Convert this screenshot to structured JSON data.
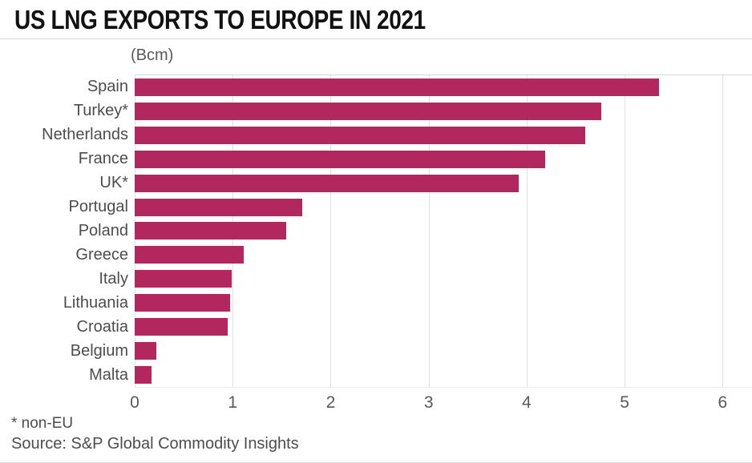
{
  "title": "US LNG EXPORTS TO EUROPE IN 2021",
  "unit_label": "(Bcm)",
  "footnote": "* non-EU",
  "source": "Source: S&P Global Commodity Insights",
  "colors": {
    "bar": "#b3275f",
    "gridline": "#e0e0e0",
    "title_rule": "#d9d9d9",
    "title_text": "#111111",
    "label_text": "#4d4d4d",
    "muted_text": "#595959"
  },
  "chart_data": {
    "type": "bar",
    "orientation": "horizontal",
    "title": "US LNG EXPORTS TO EUROPE IN 2021",
    "xlabel": "(Bcm)",
    "ylabel": "",
    "categories": [
      "Spain",
      "Turkey*",
      "Netherlands",
      "France",
      "UK*",
      "Portugal",
      "Poland",
      "Greece",
      "Italy",
      "Lithuania",
      "Croatia",
      "Belgium",
      "Malta"
    ],
    "values": [
      5.35,
      4.76,
      4.6,
      4.19,
      3.92,
      1.71,
      1.55,
      1.11,
      0.99,
      0.97,
      0.95,
      0.22,
      0.17
    ],
    "xticks": [
      0,
      1,
      2,
      3,
      4,
      5,
      6
    ],
    "xlim": [
      0,
      6.3
    ],
    "grid": true,
    "legend": false,
    "annotations": [
      "* non-EU"
    ],
    "source": "Source: S&P Global Commodity Insights"
  }
}
